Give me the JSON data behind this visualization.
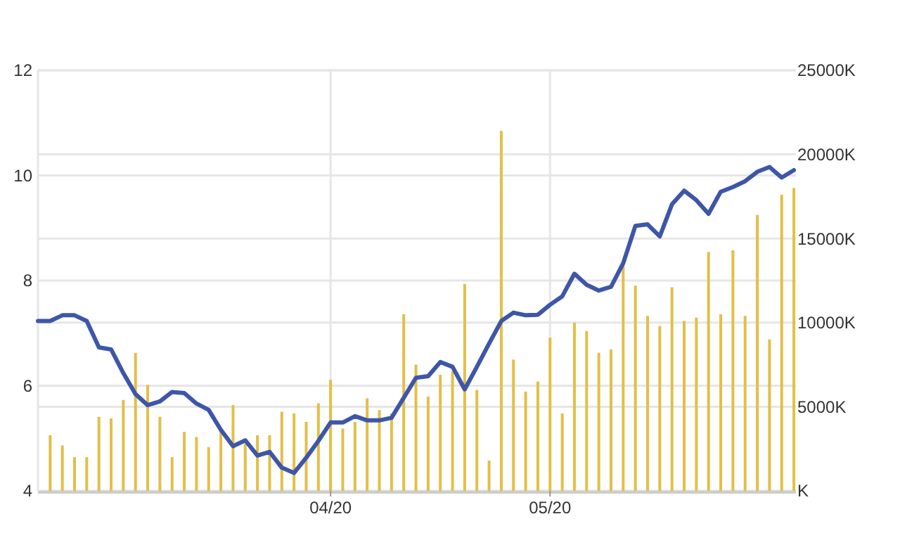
{
  "chart_data": {
    "type": "line",
    "categories": [
      null,
      null,
      null,
      null,
      null,
      null,
      null,
      null,
      null,
      null,
      null,
      null,
      null,
      null,
      null,
      null,
      null,
      null,
      null,
      null,
      null,
      null,
      null,
      null,
      "04/20",
      null,
      null,
      null,
      null,
      null,
      null,
      null,
      null,
      null,
      null,
      null,
      null,
      null,
      null,
      null,
      null,
      null,
      "05/20",
      null,
      null,
      null,
      null,
      null,
      null,
      null,
      null,
      null,
      null,
      null,
      null,
      null,
      null,
      null,
      null,
      null,
      null,
      null,
      null
    ],
    "ylim": [
      4,
      12
    ],
    "yticks": [
      4,
      6,
      8,
      10,
      12
    ],
    "y2lim": [
      0,
      25000
    ],
    "y2ticks": [
      {
        "value": 0,
        "label": "K"
      },
      {
        "value": 5000,
        "label": "5000K"
      },
      {
        "value": 10000,
        "label": "10000K"
      },
      {
        "value": 15000,
        "label": "15000K"
      },
      {
        "value": 20000,
        "label": "20000K"
      },
      {
        "value": 25000,
        "label": "25000K"
      }
    ],
    "grid": true,
    "series": [
      {
        "type": "bar",
        "axis": "y2",
        "color": "#e2bf48",
        "values": [
          null,
          3300,
          2700,
          2000,
          2000,
          4400,
          4300,
          5400,
          8200,
          6300,
          4400,
          2000,
          3500,
          3200,
          2600,
          3700,
          5100,
          2800,
          3300,
          3300,
          4700,
          4600,
          4100,
          5200,
          6600,
          3700,
          4100,
          5500,
          4800,
          4600,
          10500,
          7500,
          5600,
          6900,
          7100,
          12300,
          6000,
          1800,
          21400,
          7800,
          5900,
          6500,
          9100,
          4600,
          10000,
          9500,
          8200,
          8400,
          13400,
          12200,
          10400,
          9800,
          12100,
          10100,
          10300,
          14200,
          10500,
          14300,
          10400,
          16400,
          9000,
          17600,
          18000
        ]
      },
      {
        "axis": "y",
        "color": "#3e56a8",
        "values": [
          7.23,
          7.23,
          7.34,
          7.34,
          7.23,
          6.73,
          6.69,
          6.24,
          5.84,
          5.63,
          5.7,
          5.88,
          5.86,
          5.66,
          5.54,
          5.16,
          4.85,
          4.96,
          4.67,
          4.74,
          4.44,
          4.34,
          4.63,
          4.95,
          5.3,
          5.3,
          5.42,
          5.34,
          5.34,
          5.39,
          5.77,
          6.15,
          6.18,
          6.45,
          6.36,
          5.93,
          6.36,
          6.8,
          7.23,
          7.39,
          7.34,
          7.35,
          7.54,
          7.7,
          8.13,
          7.92,
          7.81,
          7.88,
          8.33,
          9.04,
          9.07,
          8.84,
          9.45,
          9.71,
          9.53,
          9.27,
          9.69,
          9.78,
          9.89,
          10.07,
          10.16,
          9.96,
          10.1
        ]
      }
    ]
  }
}
